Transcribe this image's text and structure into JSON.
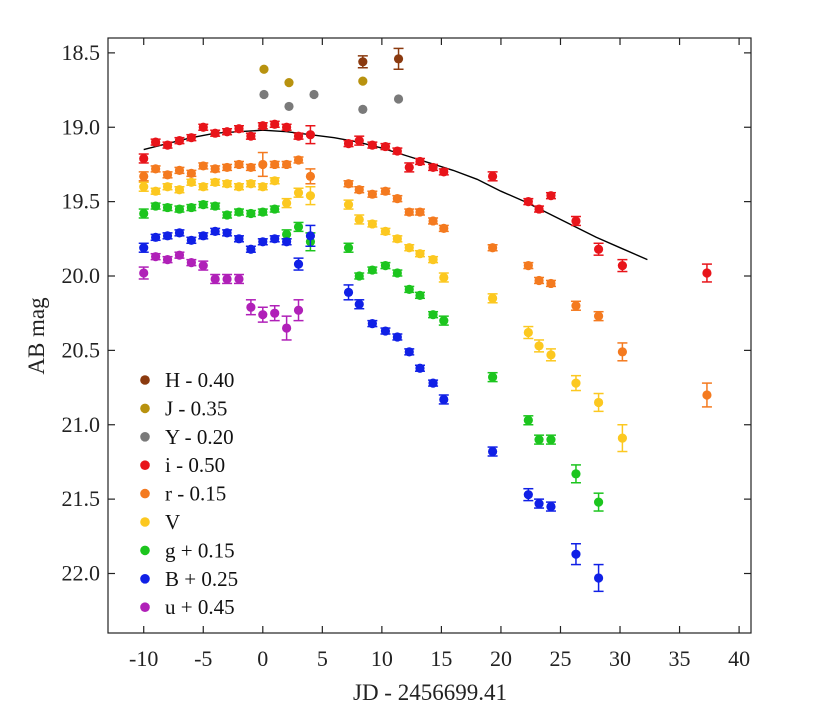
{
  "chart_data": {
    "type": "scatter",
    "title": "",
    "xlabel": "JD - 2456699.41",
    "ylabel": "AB mag",
    "xlim": [
      -13,
      41
    ],
    "ylim": [
      18.4,
      22.4
    ],
    "y_inverted": true,
    "grid": false,
    "legend_position": "bottom-left",
    "x_ticks": [
      -10,
      -5,
      0,
      5,
      10,
      15,
      20,
      25,
      30,
      35,
      40
    ],
    "x_tick_labels": [
      "-10",
      "-5",
      "0",
      "5",
      "10",
      "15",
      "20",
      "25",
      "30",
      "35",
      "40"
    ],
    "y_ticks": [
      18.5,
      19.0,
      19.5,
      20.0,
      20.5,
      21.0,
      21.5,
      22.0
    ],
    "y_tick_labels": [
      "18.5",
      "19.0",
      "19.5",
      "20.0",
      "20.5",
      "21.0",
      "21.5",
      "22.0"
    ],
    "series": [
      {
        "name": "H - 0.40",
        "color": "#8b3a0f",
        "x": [
          8.4,
          11.4
        ],
        "y": [
          18.56,
          18.54
        ],
        "err": [
          0.04,
          0.07
        ]
      },
      {
        "name": "J - 0.35",
        "color": "#b8920f",
        "x": [
          0.1,
          2.2,
          8.4
        ],
        "y": [
          18.61,
          18.7,
          18.69
        ],
        "err": [
          0,
          0,
          0
        ]
      },
      {
        "name": "Y - 0.20",
        "color": "#7a7a7a",
        "x": [
          0.1,
          2.2,
          4.3,
          8.4,
          11.4
        ],
        "y": [
          18.78,
          18.86,
          18.78,
          18.88,
          18.81
        ],
        "err": [
          0,
          0,
          0,
          0,
          0
        ]
      },
      {
        "name": "i - 0.50",
        "color": "#e8141a",
        "x": [
          -10,
          -9,
          -8,
          -7,
          -6,
          -5,
          -4,
          -3,
          -2,
          -1,
          0,
          1,
          2,
          3,
          4,
          7.2,
          8.1,
          9.2,
          10.3,
          11.3,
          12.3,
          13.2,
          14.3,
          15.2,
          19.3,
          22.3,
          23.2,
          24.2,
          26.3,
          28.2,
          30.2,
          37.3
        ],
        "y": [
          19.21,
          19.1,
          19.12,
          19.09,
          19.07,
          19.0,
          19.04,
          19.03,
          19.01,
          19.06,
          18.99,
          18.98,
          19.0,
          19.06,
          19.05,
          19.11,
          19.09,
          19.12,
          19.13,
          19.16,
          19.27,
          19.23,
          19.27,
          19.3,
          19.33,
          19.5,
          19.55,
          19.46,
          19.63,
          19.82,
          19.93,
          19.98
        ],
        "err": [
          0.03,
          0.02,
          0.02,
          0.02,
          0.02,
          0.02,
          0.02,
          0.02,
          0.02,
          0.02,
          0.02,
          0.02,
          0.02,
          0.02,
          0.06,
          0.02,
          0.03,
          0.02,
          0.02,
          0.02,
          0.03,
          0.02,
          0.02,
          0.02,
          0.03,
          0.02,
          0.02,
          0.02,
          0.03,
          0.04,
          0.04,
          0.06
        ]
      },
      {
        "name": "r - 0.15",
        "color": "#f47a1f",
        "x": [
          -10,
          -9,
          -8,
          -7,
          -6,
          -5,
          -4,
          -3,
          -2,
          -1,
          0,
          1,
          2,
          3,
          4,
          7.2,
          8.1,
          9.2,
          10.3,
          11.3,
          12.3,
          13.2,
          14.3,
          15.2,
          19.3,
          22.3,
          23.2,
          24.2,
          26.3,
          28.2,
          30.2,
          37.3
        ],
        "y": [
          19.33,
          19.28,
          19.32,
          19.29,
          19.31,
          19.26,
          19.28,
          19.27,
          19.25,
          19.27,
          19.25,
          19.25,
          19.25,
          19.22,
          19.33,
          19.38,
          19.42,
          19.45,
          19.43,
          19.48,
          19.57,
          19.57,
          19.63,
          19.68,
          19.81,
          19.93,
          20.03,
          20.05,
          20.2,
          20.27,
          20.51,
          20.8
        ],
        "err": [
          0.03,
          0.02,
          0.02,
          0.02,
          0.02,
          0.02,
          0.02,
          0.02,
          0.02,
          0.02,
          0.08,
          0.02,
          0.02,
          0.02,
          0.05,
          0.02,
          0.02,
          0.02,
          0.02,
          0.02,
          0.02,
          0.02,
          0.02,
          0.02,
          0.02,
          0.02,
          0.02,
          0.02,
          0.03,
          0.03,
          0.06,
          0.08
        ]
      },
      {
        "name": "V",
        "color": "#fcc820",
        "x": [
          -10,
          -9,
          -8,
          -7,
          -6,
          -5,
          -4,
          -3,
          -2,
          -1,
          0,
          1,
          2,
          3,
          4,
          7.2,
          8.1,
          9.2,
          10.3,
          11.3,
          12.3,
          13.2,
          14.3,
          15.2,
          19.3,
          22.3,
          23.2,
          24.2,
          26.3,
          28.2,
          30.2
        ],
        "y": [
          19.4,
          19.43,
          19.4,
          19.42,
          19.37,
          19.4,
          19.37,
          19.38,
          19.4,
          19.38,
          19.4,
          19.36,
          19.51,
          19.44,
          19.46,
          19.52,
          19.62,
          19.65,
          19.7,
          19.75,
          19.81,
          19.85,
          19.89,
          20.01,
          20.15,
          20.38,
          20.47,
          20.53,
          20.72,
          20.85,
          21.09
        ],
        "err": [
          0.03,
          0.02,
          0.02,
          0.02,
          0.02,
          0.02,
          0.02,
          0.02,
          0.02,
          0.02,
          0.02,
          0.02,
          0.03,
          0.03,
          0.06,
          0.03,
          0.03,
          0.02,
          0.02,
          0.02,
          0.02,
          0.02,
          0.02,
          0.03,
          0.03,
          0.04,
          0.04,
          0.04,
          0.05,
          0.06,
          0.09
        ]
      },
      {
        "name": "g + 0.15",
        "color": "#1cc51e",
        "x": [
          -10,
          -9,
          -8,
          -7,
          -6,
          -5,
          -4,
          -3,
          -2,
          -1,
          0,
          1,
          2,
          3,
          4,
          7.2,
          8.1,
          9.2,
          10.3,
          11.3,
          12.3,
          13.2,
          14.3,
          15.2,
          19.3,
          22.3,
          23.2,
          24.2,
          26.3,
          28.2
        ],
        "y": [
          19.58,
          19.53,
          19.54,
          19.55,
          19.54,
          19.52,
          19.53,
          19.59,
          19.57,
          19.58,
          19.57,
          19.55,
          19.72,
          19.67,
          19.77,
          19.81,
          20.0,
          19.96,
          19.93,
          19.98,
          20.09,
          20.13,
          20.26,
          20.3,
          20.68,
          20.97,
          21.1,
          21.1,
          21.33,
          21.52
        ],
        "err": [
          0.03,
          0.02,
          0.02,
          0.02,
          0.02,
          0.02,
          0.02,
          0.02,
          0.02,
          0.02,
          0.02,
          0.02,
          0.03,
          0.03,
          0.06,
          0.03,
          0.02,
          0.02,
          0.02,
          0.02,
          0.02,
          0.02,
          0.02,
          0.03,
          0.03,
          0.03,
          0.03,
          0.03,
          0.06,
          0.06
        ]
      },
      {
        "name": "B + 0.25",
        "color": "#1020e6",
        "x": [
          -10,
          -9,
          -8,
          -7,
          -6,
          -5,
          -4,
          -3,
          -2,
          -1,
          0,
          1,
          2,
          3,
          4,
          7.2,
          8.1,
          9.2,
          10.3,
          11.3,
          12.3,
          13.2,
          14.3,
          15.2,
          19.3,
          22.3,
          23.2,
          24.2,
          26.3,
          28.2
        ],
        "y": [
          19.81,
          19.74,
          19.73,
          19.71,
          19.76,
          19.73,
          19.7,
          19.71,
          19.75,
          19.82,
          19.77,
          19.75,
          19.77,
          19.92,
          19.73,
          20.11,
          20.19,
          20.32,
          20.37,
          20.41,
          20.51,
          20.62,
          20.72,
          20.83,
          21.18,
          21.47,
          21.53,
          21.55,
          21.87,
          22.03
        ],
        "err": [
          0.03,
          0.02,
          0.02,
          0.02,
          0.02,
          0.02,
          0.02,
          0.02,
          0.02,
          0.02,
          0.02,
          0.02,
          0.02,
          0.04,
          0.07,
          0.05,
          0.03,
          0.02,
          0.02,
          0.02,
          0.02,
          0.02,
          0.02,
          0.03,
          0.03,
          0.04,
          0.03,
          0.03,
          0.07,
          0.09
        ]
      },
      {
        "name": "u + 0.45",
        "color": "#b020b8",
        "x": [
          -10,
          -9,
          -8,
          -7,
          -6,
          -5,
          -4,
          -3,
          -2,
          -1,
          0,
          1,
          2,
          3
        ],
        "y": [
          19.98,
          19.87,
          19.89,
          19.86,
          19.91,
          19.93,
          20.02,
          20.02,
          20.02,
          20.21,
          20.26,
          20.25,
          20.35,
          20.23
        ],
        "err": [
          0.04,
          0.02,
          0.02,
          0.02,
          0.02,
          0.03,
          0.03,
          0.03,
          0.03,
          0.05,
          0.05,
          0.05,
          0.08,
          0.07
        ]
      }
    ],
    "fit_curve": {
      "name": "model fit",
      "color": "#000000",
      "x": [
        -10,
        -8,
        -6,
        -4,
        -2,
        0,
        2,
        4,
        6,
        8,
        10,
        12,
        14,
        16,
        18,
        20,
        22,
        24,
        26,
        28,
        30,
        32.3
      ],
      "y": [
        19.15,
        19.11,
        19.07,
        19.04,
        19.03,
        19.02,
        19.03,
        19.05,
        19.07,
        19.1,
        19.14,
        19.19,
        19.24,
        19.29,
        19.35,
        19.43,
        19.5,
        19.58,
        19.66,
        19.74,
        19.81,
        19.89
      ]
    },
    "legend_order": [
      "H - 0.40",
      "J - 0.35",
      "Y - 0.20",
      "i - 0.50",
      "r - 0.15",
      "V",
      "g + 0.15",
      "B + 0.25",
      "u + 0.45"
    ]
  }
}
